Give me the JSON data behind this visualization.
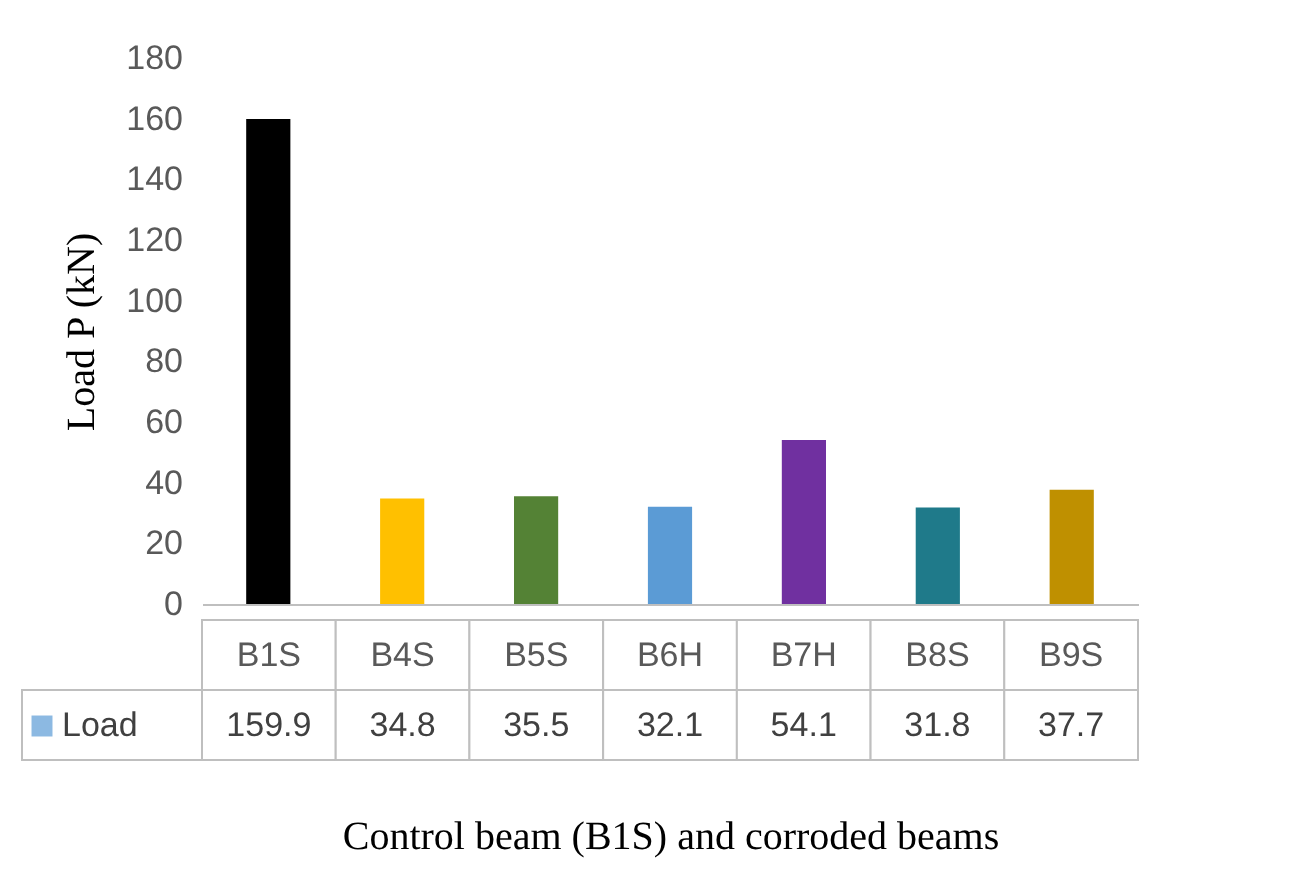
{
  "chart_data": {
    "type": "bar",
    "xlabel": "Control beam (B1S) and corroded beams",
    "ylabel": "Load P (kN)",
    "categories": [
      "B1S",
      "B4S",
      "B5S",
      "B6H",
      "B7H",
      "B8S",
      "B9S"
    ],
    "series": [
      {
        "name": "Load",
        "values": [
          159.9,
          34.8,
          35.5,
          32.1,
          54.1,
          31.8,
          37.7
        ]
      }
    ],
    "colors": [
      "#000000",
      "#ffc000",
      "#548235",
      "#5b9bd5",
      "#7030a0",
      "#1f7a8a",
      "#bf9000"
    ],
    "ylim": [
      0,
      180
    ],
    "yticks": [
      0,
      20,
      40,
      60,
      80,
      100,
      120,
      140,
      160,
      180
    ],
    "data_labels": true,
    "legend": "bottom left",
    "grid": false
  }
}
